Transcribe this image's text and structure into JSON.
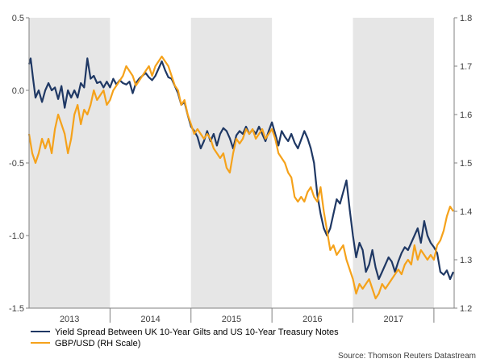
{
  "chart_data": {
    "type": "line",
    "title": "",
    "xlabel": "",
    "ylabel_left": "",
    "ylabel_right": "",
    "x_range": [
      2012.5,
      2017.75
    ],
    "x_ticks": [
      {
        "label": "2013",
        "value": 2013.0
      },
      {
        "label": "2014",
        "value": 2014.0
      },
      {
        "label": "2015",
        "value": 2015.0
      },
      {
        "label": "2016",
        "value": 2016.0
      },
      {
        "label": "2017",
        "value": 2017.0
      }
    ],
    "shaded_years": [
      [
        2012.5,
        2013.5
      ],
      [
        2014.5,
        2015.5
      ],
      [
        2016.5,
        2017.5
      ]
    ],
    "y_left": {
      "range": [
        -1.5,
        0.5
      ],
      "ticks": [
        "0.5",
        "0.0",
        "-0.5",
        "-1.0",
        "-1.5"
      ],
      "tick_values": [
        0.5,
        0.0,
        -0.5,
        -1.0,
        -1.5
      ]
    },
    "y_right": {
      "range": [
        1.2,
        1.8
      ],
      "ticks": [
        "1.8",
        "1.7",
        "1.6",
        "1.5",
        "1.4",
        "1.3",
        "1.2"
      ],
      "tick_values": [
        1.8,
        1.7,
        1.6,
        1.5,
        1.4,
        1.3,
        1.2
      ]
    },
    "series": [
      {
        "name": "Yield Spread Between UK 10-Year Gilts and US 10-Year Treasury Notes",
        "axis": "left",
        "color": "#1f3864",
        "points": [
          [
            2012.5,
            0.18
          ],
          [
            2012.52,
            0.22
          ],
          [
            2012.55,
            0.08
          ],
          [
            2012.58,
            -0.05
          ],
          [
            2012.62,
            0.0
          ],
          [
            2012.66,
            -0.08
          ],
          [
            2012.7,
            0.0
          ],
          [
            2012.74,
            0.05
          ],
          [
            2012.78,
            0.0
          ],
          [
            2012.82,
            0.02
          ],
          [
            2012.86,
            -0.06
          ],
          [
            2012.9,
            0.03
          ],
          [
            2012.94,
            -0.12
          ],
          [
            2012.98,
            0.0
          ],
          [
            2013.02,
            -0.05
          ],
          [
            2013.06,
            0.0
          ],
          [
            2013.1,
            -0.05
          ],
          [
            2013.14,
            0.05
          ],
          [
            2013.18,
            0.02
          ],
          [
            2013.22,
            0.22
          ],
          [
            2013.26,
            0.08
          ],
          [
            2013.3,
            0.1
          ],
          [
            2013.34,
            0.05
          ],
          [
            2013.38,
            0.06
          ],
          [
            2013.42,
            0.02
          ],
          [
            2013.46,
            0.06
          ],
          [
            2013.5,
            0.02
          ],
          [
            2013.54,
            0.08
          ],
          [
            2013.58,
            0.04
          ],
          [
            2013.62,
            0.07
          ],
          [
            2013.66,
            0.05
          ],
          [
            2013.7,
            0.04
          ],
          [
            2013.74,
            0.06
          ],
          [
            2013.78,
            -0.02
          ],
          [
            2013.82,
            0.05
          ],
          [
            2013.86,
            0.08
          ],
          [
            2013.9,
            0.1
          ],
          [
            2013.94,
            0.12
          ],
          [
            2013.98,
            0.09
          ],
          [
            2014.02,
            0.07
          ],
          [
            2014.06,
            0.1
          ],
          [
            2014.1,
            0.15
          ],
          [
            2014.14,
            0.2
          ],
          [
            2014.18,
            0.14
          ],
          [
            2014.22,
            0.09
          ],
          [
            2014.26,
            0.08
          ],
          [
            2014.3,
            0.03
          ],
          [
            2014.34,
            -0.02
          ],
          [
            2014.38,
            -0.1
          ],
          [
            2014.42,
            -0.08
          ],
          [
            2014.46,
            -0.17
          ],
          [
            2014.5,
            -0.25
          ],
          [
            2014.54,
            -0.28
          ],
          [
            2014.58,
            -0.32
          ],
          [
            2014.62,
            -0.4
          ],
          [
            2014.66,
            -0.35
          ],
          [
            2014.7,
            -0.28
          ],
          [
            2014.74,
            -0.35
          ],
          [
            2014.78,
            -0.3
          ],
          [
            2014.82,
            -0.38
          ],
          [
            2014.86,
            -0.3
          ],
          [
            2014.9,
            -0.26
          ],
          [
            2014.94,
            -0.28
          ],
          [
            2014.98,
            -0.33
          ],
          [
            2015.02,
            -0.4
          ],
          [
            2015.06,
            -0.31
          ],
          [
            2015.1,
            -0.28
          ],
          [
            2015.14,
            -0.3
          ],
          [
            2015.18,
            -0.25
          ],
          [
            2015.22,
            -0.3
          ],
          [
            2015.26,
            -0.27
          ],
          [
            2015.3,
            -0.3
          ],
          [
            2015.34,
            -0.25
          ],
          [
            2015.38,
            -0.3
          ],
          [
            2015.42,
            -0.35
          ],
          [
            2015.46,
            -0.28
          ],
          [
            2015.5,
            -0.22
          ],
          [
            2015.54,
            -0.3
          ],
          [
            2015.58,
            -0.38
          ],
          [
            2015.62,
            -0.28
          ],
          [
            2015.66,
            -0.32
          ],
          [
            2015.7,
            -0.35
          ],
          [
            2015.74,
            -0.3
          ],
          [
            2015.78,
            -0.36
          ],
          [
            2015.82,
            -0.4
          ],
          [
            2015.86,
            -0.34
          ],
          [
            2015.9,
            -0.28
          ],
          [
            2015.94,
            -0.33
          ],
          [
            2015.98,
            -0.4
          ],
          [
            2016.02,
            -0.5
          ],
          [
            2016.06,
            -0.72
          ],
          [
            2016.1,
            -0.85
          ],
          [
            2016.14,
            -0.95
          ],
          [
            2016.18,
            -1.0
          ],
          [
            2016.22,
            -0.95
          ],
          [
            2016.26,
            -0.85
          ],
          [
            2016.3,
            -0.75
          ],
          [
            2016.34,
            -0.78
          ],
          [
            2016.38,
            -0.7
          ],
          [
            2016.42,
            -0.62
          ],
          [
            2016.46,
            -0.82
          ],
          [
            2016.5,
            -1.0
          ],
          [
            2016.54,
            -1.15
          ],
          [
            2016.58,
            -1.05
          ],
          [
            2016.62,
            -1.1
          ],
          [
            2016.66,
            -1.25
          ],
          [
            2016.7,
            -1.2
          ],
          [
            2016.74,
            -1.1
          ],
          [
            2016.78,
            -1.22
          ],
          [
            2016.82,
            -1.3
          ],
          [
            2016.86,
            -1.25
          ],
          [
            2016.9,
            -1.2
          ],
          [
            2016.94,
            -1.15
          ],
          [
            2016.98,
            -1.18
          ],
          [
            2017.02,
            -1.25
          ],
          [
            2017.06,
            -1.18
          ],
          [
            2017.1,
            -1.12
          ],
          [
            2017.14,
            -1.08
          ],
          [
            2017.18,
            -1.1
          ],
          [
            2017.22,
            -1.05
          ],
          [
            2017.26,
            -1.0
          ],
          [
            2017.3,
            -0.95
          ],
          [
            2017.34,
            -1.05
          ],
          [
            2017.38,
            -0.9
          ],
          [
            2017.42,
            -1.0
          ],
          [
            2017.46,
            -1.05
          ],
          [
            2017.5,
            -1.08
          ],
          [
            2017.54,
            -1.12
          ],
          [
            2017.58,
            -1.25
          ],
          [
            2017.62,
            -1.27
          ],
          [
            2017.66,
            -1.24
          ],
          [
            2017.7,
            -1.3
          ],
          [
            2017.74,
            -1.25
          ]
        ]
      },
      {
        "name": "GBP/USD (RH Scale)",
        "axis": "right",
        "color": "#f5a21b",
        "points": [
          [
            2012.5,
            1.56
          ],
          [
            2012.54,
            1.52
          ],
          [
            2012.58,
            1.5
          ],
          [
            2012.62,
            1.52
          ],
          [
            2012.66,
            1.55
          ],
          [
            2012.7,
            1.53
          ],
          [
            2012.74,
            1.55
          ],
          [
            2012.78,
            1.52
          ],
          [
            2012.82,
            1.57
          ],
          [
            2012.86,
            1.6
          ],
          [
            2012.9,
            1.58
          ],
          [
            2012.94,
            1.56
          ],
          [
            2012.98,
            1.52
          ],
          [
            2013.02,
            1.55
          ],
          [
            2013.06,
            1.6
          ],
          [
            2013.1,
            1.62
          ],
          [
            2013.14,
            1.58
          ],
          [
            2013.18,
            1.61
          ],
          [
            2013.22,
            1.6
          ],
          [
            2013.26,
            1.62
          ],
          [
            2013.3,
            1.65
          ],
          [
            2013.34,
            1.63
          ],
          [
            2013.38,
            1.64
          ],
          [
            2013.42,
            1.65
          ],
          [
            2013.46,
            1.62
          ],
          [
            2013.5,
            1.63
          ],
          [
            2013.54,
            1.65
          ],
          [
            2013.58,
            1.66
          ],
          [
            2013.62,
            1.67
          ],
          [
            2013.66,
            1.68
          ],
          [
            2013.7,
            1.7
          ],
          [
            2013.74,
            1.69
          ],
          [
            2013.78,
            1.68
          ],
          [
            2013.82,
            1.66
          ],
          [
            2013.86,
            1.67
          ],
          [
            2013.9,
            1.68
          ],
          [
            2013.94,
            1.69
          ],
          [
            2013.98,
            1.7
          ],
          [
            2014.02,
            1.68
          ],
          [
            2014.06,
            1.7
          ],
          [
            2014.1,
            1.71
          ],
          [
            2014.14,
            1.72
          ],
          [
            2014.18,
            1.71
          ],
          [
            2014.22,
            1.7
          ],
          [
            2014.26,
            1.68
          ],
          [
            2014.3,
            1.66
          ],
          [
            2014.34,
            1.65
          ],
          [
            2014.38,
            1.62
          ],
          [
            2014.42,
            1.63
          ],
          [
            2014.46,
            1.6
          ],
          [
            2014.5,
            1.58
          ],
          [
            2014.54,
            1.56
          ],
          [
            2014.58,
            1.57
          ],
          [
            2014.62,
            1.56
          ],
          [
            2014.66,
            1.55
          ],
          [
            2014.7,
            1.56
          ],
          [
            2014.74,
            1.55
          ],
          [
            2014.78,
            1.53
          ],
          [
            2014.82,
            1.52
          ],
          [
            2014.86,
            1.51
          ],
          [
            2014.9,
            1.52
          ],
          [
            2014.94,
            1.49
          ],
          [
            2014.98,
            1.48
          ],
          [
            2015.02,
            1.52
          ],
          [
            2015.06,
            1.55
          ],
          [
            2015.1,
            1.54
          ],
          [
            2015.14,
            1.55
          ],
          [
            2015.18,
            1.57
          ],
          [
            2015.22,
            1.56
          ],
          [
            2015.26,
            1.57
          ],
          [
            2015.3,
            1.55
          ],
          [
            2015.34,
            1.56
          ],
          [
            2015.38,
            1.57
          ],
          [
            2015.42,
            1.55
          ],
          [
            2015.46,
            1.56
          ],
          [
            2015.5,
            1.57
          ],
          [
            2015.54,
            1.55
          ],
          [
            2015.58,
            1.52
          ],
          [
            2015.62,
            1.51
          ],
          [
            2015.66,
            1.5
          ],
          [
            2015.7,
            1.48
          ],
          [
            2015.74,
            1.47
          ],
          [
            2015.78,
            1.43
          ],
          [
            2015.82,
            1.42
          ],
          [
            2015.86,
            1.43
          ],
          [
            2015.9,
            1.42
          ],
          [
            2015.94,
            1.44
          ],
          [
            2015.98,
            1.45
          ],
          [
            2016.02,
            1.43
          ],
          [
            2016.06,
            1.42
          ],
          [
            2016.1,
            1.45
          ],
          [
            2016.14,
            1.4
          ],
          [
            2016.18,
            1.36
          ],
          [
            2016.22,
            1.32
          ],
          [
            2016.26,
            1.33
          ],
          [
            2016.3,
            1.31
          ],
          [
            2016.34,
            1.32
          ],
          [
            2016.38,
            1.33
          ],
          [
            2016.42,
            1.3
          ],
          [
            2016.46,
            1.28
          ],
          [
            2016.5,
            1.26
          ],
          [
            2016.54,
            1.23
          ],
          [
            2016.58,
            1.25
          ],
          [
            2016.62,
            1.24
          ],
          [
            2016.66,
            1.25
          ],
          [
            2016.7,
            1.26
          ],
          [
            2016.74,
            1.24
          ],
          [
            2016.78,
            1.22
          ],
          [
            2016.82,
            1.23
          ],
          [
            2016.86,
            1.25
          ],
          [
            2016.9,
            1.24
          ],
          [
            2016.94,
            1.25
          ],
          [
            2016.98,
            1.26
          ],
          [
            2017.02,
            1.27
          ],
          [
            2017.06,
            1.28
          ],
          [
            2017.1,
            1.27
          ],
          [
            2017.14,
            1.29
          ],
          [
            2017.18,
            1.3
          ],
          [
            2017.22,
            1.29
          ],
          [
            2017.26,
            1.33
          ],
          [
            2017.3,
            1.3
          ],
          [
            2017.34,
            1.32
          ],
          [
            2017.38,
            1.31
          ],
          [
            2017.42,
            1.3
          ],
          [
            2017.46,
            1.31
          ],
          [
            2017.5,
            1.3
          ],
          [
            2017.54,
            1.33
          ],
          [
            2017.58,
            1.34
          ],
          [
            2017.62,
            1.36
          ],
          [
            2017.66,
            1.39
          ],
          [
            2017.7,
            1.41
          ],
          [
            2017.74,
            1.4
          ]
        ]
      }
    ],
    "legend_position": "bottom-left"
  },
  "source_text": "Source: Thomson Reuters Datastream",
  "colors": {
    "spread": "#1f3864",
    "gbpusd": "#f5a21b",
    "shade": "#e6e6e6",
    "axis": "#808080"
  }
}
